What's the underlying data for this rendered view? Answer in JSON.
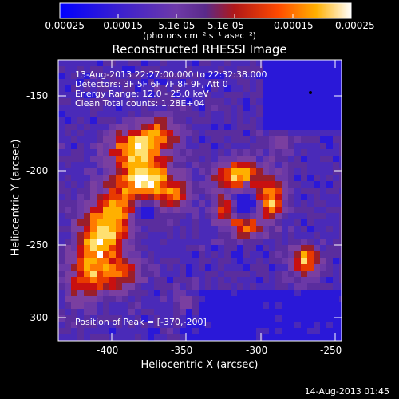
{
  "colorbar": {
    "ticks": [
      "-0.00025",
      "-0.00015",
      "-5.1e-05",
      "5.1e-05",
      "0.00015",
      "0.00025"
    ],
    "unit_label": "(photons cm⁻² s⁻¹ asec⁻²)",
    "colors": [
      "#0000ff",
      "#5a2d9e",
      "#7b3fa6",
      "#d62010",
      "#ff9a00",
      "#ffffff"
    ]
  },
  "title": "Reconstructed RHESSI Image",
  "info": {
    "line1": "13-Aug-2013 22:27:00.000 to 22:32:38.000",
    "line2": "Detectors: 3F 5F 6F 7F 8F 9F, Att 0",
    "line3": "Energy Range: 12.0 - 25.0 keV",
    "line4": "Clean     Total counts: 1.28E+04"
  },
  "peak_label": "Position of Peak = [-370,-200]",
  "axes": {
    "xlabel": "Heliocentric X (arcsec)",
    "ylabel": "Heliocentric Y (arcsec)",
    "xticks": [
      "-400",
      "-350",
      "-300",
      "-250"
    ],
    "yticks": [
      "-150",
      "-200",
      "-250",
      "-300"
    ],
    "xlim": [
      -433,
      -245
    ],
    "ylim": [
      -322,
      -138
    ]
  },
  "footer_date": "14-Aug-2013 01:45"
}
